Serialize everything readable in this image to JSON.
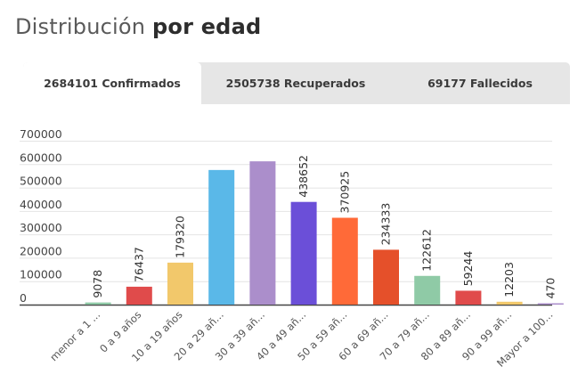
{
  "title": {
    "light": "Distribución",
    "bold": "por edad"
  },
  "tabs": [
    {
      "label": "2684101 Confirmados",
      "active": true
    },
    {
      "label": "2505738 Recuperados",
      "active": false
    },
    {
      "label": "69177 Fallecidos",
      "active": false
    }
  ],
  "chart_data": {
    "type": "bar",
    "title": "",
    "xlabel": "",
    "ylabel": "",
    "ylim": [
      0,
      700000
    ],
    "yticks": [
      "700000",
      "600000",
      "500000",
      "400000",
      "300000",
      "200000",
      "100000",
      "0"
    ],
    "grid": true,
    "categories": [
      "menor a 1 ...",
      "0 a 9 años",
      "10 a 19 años",
      "20 a 29 añ...",
      "30 a 39 añ...",
      "40 a 49 añ...",
      "50 a 59 añ...",
      "60 a 69 añ...",
      "70 a 79 añ...",
      "80 a 89 añ...",
      "90 a 99 añ...",
      "Mayor a 100..."
    ],
    "values": [
      9078,
      76437,
      179320,
      575000,
      612000,
      438652,
      370925,
      234333,
      122612,
      59244,
      12203,
      470
    ],
    "data_labels": [
      "9078",
      "76437",
      "179320",
      "",
      "",
      "438652",
      "370925",
      "234333",
      "122612",
      "59244",
      "12203",
      "470"
    ],
    "colors": [
      "#8fcaa6",
      "#e04b4b",
      "#f2c86b",
      "#5ab8e8",
      "#ab8ecb",
      "#6b4fd8",
      "#ff6a38",
      "#e5502a",
      "#8fcaa6",
      "#e04b4b",
      "#f2c86b",
      "#ab8ecb"
    ]
  }
}
